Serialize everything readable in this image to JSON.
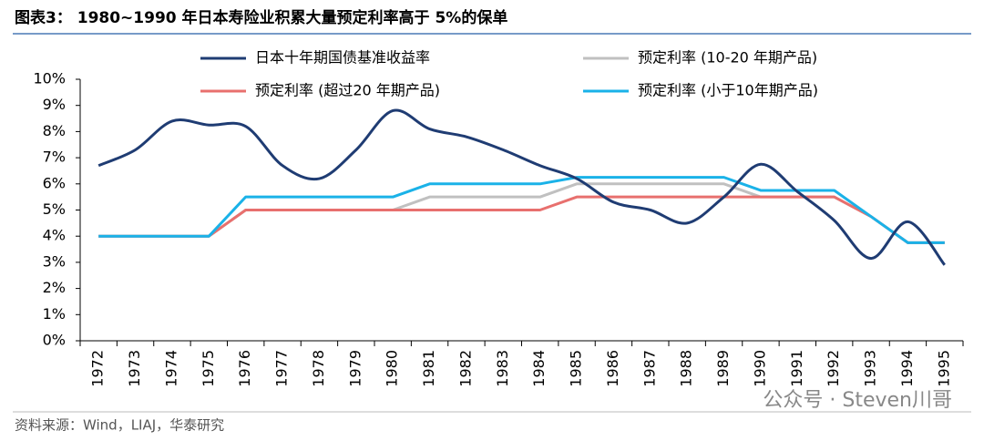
{
  "chart_data": {
    "type": "line",
    "title": "图表3： 1980~1990 年日本寿险业积累大量预定利率高于 5%的保单",
    "source": "资料来源：Wind，LIAJ，华泰研究",
    "watermark": "公众号 · Steven川哥",
    "categories": [
      "1972",
      "1973",
      "1974",
      "1975",
      "1976",
      "1977",
      "1978",
      "1979",
      "1980",
      "1981",
      "1982",
      "1983",
      "1984",
      "1985",
      "1986",
      "1987",
      "1988",
      "1989",
      "1990",
      "1991",
      "1992",
      "1993",
      "1994",
      "1995"
    ],
    "series": [
      {
        "name": "日本十年期国债基准收益率",
        "color": "#1f3c73",
        "smooth": true,
        "values": [
          6.7,
          7.3,
          8.4,
          8.25,
          8.2,
          6.7,
          6.2,
          7.3,
          8.8,
          8.1,
          7.8,
          7.3,
          6.7,
          6.2,
          5.3,
          5.0,
          4.5,
          5.5,
          6.75,
          5.7,
          4.6,
          3.15,
          4.55,
          2.9
        ]
      },
      {
        "name": "预定利率 (10-20 年期产品)",
        "color": "#c0c0c0",
        "values": [
          4,
          4,
          4,
          4,
          5,
          5,
          5,
          5,
          5,
          5.5,
          5.5,
          5.5,
          5.5,
          6,
          6,
          6,
          6,
          6,
          5.5,
          5.5,
          5.5,
          4.75,
          3.75,
          3.75
        ]
      },
      {
        "name": "预定利率 (超过20 年期产品)",
        "color": "#e8706e",
        "values": [
          4,
          4,
          4,
          4,
          5,
          5,
          5,
          5,
          5,
          5,
          5,
          5,
          5,
          5.5,
          5.5,
          5.5,
          5.5,
          5.5,
          5.5,
          5.5,
          5.5,
          4.75,
          3.75,
          3.75
        ]
      },
      {
        "name": "预定利率 (小于10年期产品)",
        "color": "#1ab2e8",
        "values": [
          4,
          4,
          4,
          4,
          5.5,
          5.5,
          5.5,
          5.5,
          5.5,
          6,
          6,
          6,
          6,
          6.25,
          6.25,
          6.25,
          6.25,
          6.25,
          5.75,
          5.75,
          5.75,
          4.75,
          3.75,
          3.75
        ]
      }
    ],
    "ylim": [
      0,
      10
    ],
    "yticks": [
      {
        "value": 0,
        "label": "0%"
      },
      {
        "value": 1,
        "label": "1%"
      },
      {
        "value": 2,
        "label": "2%"
      },
      {
        "value": 3,
        "label": "3%"
      },
      {
        "value": 4,
        "label": "4%"
      },
      {
        "value": 5,
        "label": "5%"
      },
      {
        "value": 6,
        "label": "6%"
      },
      {
        "value": 7,
        "label": "7%"
      },
      {
        "value": 8,
        "label": "8%"
      },
      {
        "value": 9,
        "label": "9%"
      },
      {
        "value": 10,
        "label": "10%"
      }
    ],
    "legend": "top",
    "grid": false
  }
}
